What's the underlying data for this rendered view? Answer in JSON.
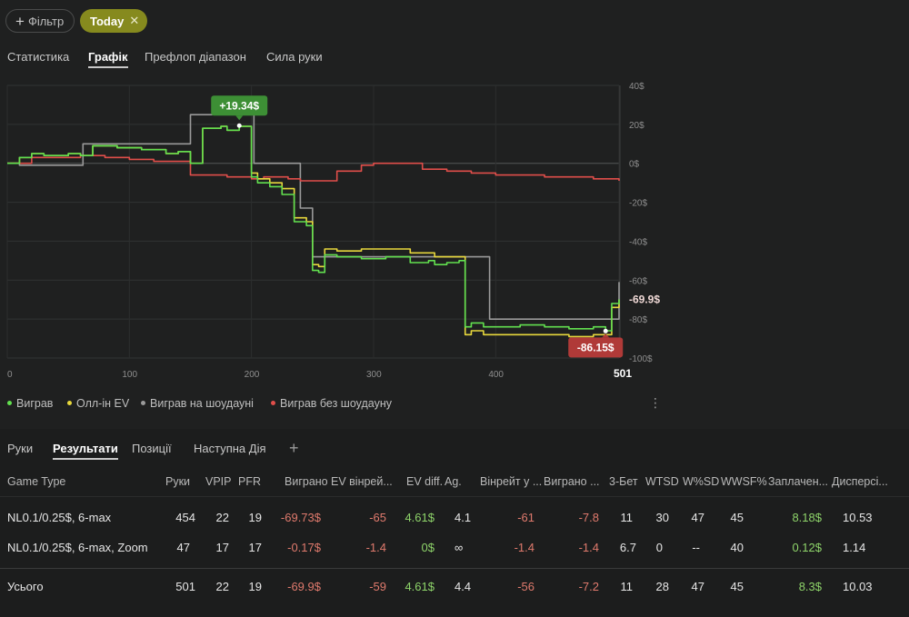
{
  "toolbar": {
    "filter_label": "Фільтр",
    "today_label": "Today"
  },
  "tabs": [
    "Статистика",
    "Графік",
    "Префлоп діапазон",
    "Сила руки"
  ],
  "active_tab": "Графік",
  "colors": {
    "win": "#62e04f",
    "allin_ev": "#e8d83c",
    "showdown": "#9a9a9a",
    "non_showdown": "#e04e4a",
    "accent": "#868a1e"
  },
  "chart_data": {
    "type": "line",
    "x_ticks": [
      "0",
      "100",
      "200",
      "300",
      "400",
      "501"
    ],
    "y_ticks": [
      "40$",
      "20$",
      "0$",
      "-20$",
      "-40$",
      "-60$",
      "-80$",
      "-100$"
    ],
    "xlim": [
      0,
      501
    ],
    "ylim": [
      -100,
      40
    ],
    "grid": true,
    "legend_position": "bottom-left",
    "annotations": {
      "max_label": "+19.34$",
      "min_label": "-86.15$",
      "end_label": "-69.9$",
      "end_x_label": "501"
    },
    "series": [
      {
        "name": "Виграв",
        "x": [
          0,
          10,
          20,
          30,
          50,
          60,
          70,
          90,
          110,
          130,
          140,
          150,
          160,
          170,
          175,
          180,
          190,
          200,
          205,
          215,
          225,
          235,
          245,
          250,
          255,
          260,
          270,
          290,
          310,
          330,
          345,
          350,
          360,
          370,
          375,
          380,
          390,
          400,
          420,
          440,
          460,
          480,
          490,
          495,
          501
        ],
        "y": [
          0,
          3,
          5,
          4,
          5,
          4,
          9,
          8,
          7,
          5,
          6,
          0,
          18,
          18,
          19,
          17,
          19,
          -7,
          -10,
          -12,
          -16,
          -30,
          -32,
          -55,
          -56,
          -47,
          -48,
          -49,
          -48,
          -51,
          -50,
          -52,
          -51,
          -50,
          -84,
          -82,
          -84,
          -84,
          -83,
          -84,
          -85,
          -84,
          -86,
          -72,
          -69.9
        ]
      },
      {
        "name": "Олл-ін EV",
        "x": [
          0,
          10,
          20,
          30,
          50,
          60,
          70,
          90,
          110,
          130,
          140,
          150,
          160,
          170,
          175,
          180,
          190,
          200,
          205,
          215,
          225,
          235,
          245,
          250,
          255,
          260,
          270,
          290,
          310,
          330,
          345,
          350,
          360,
          370,
          375,
          380,
          390,
          400,
          420,
          440,
          460,
          480,
          490,
          495,
          501
        ],
        "y": [
          0,
          3,
          5,
          4,
          5,
          4,
          9,
          8,
          7,
          5,
          6,
          0,
          18,
          18,
          19,
          17,
          19,
          -5,
          -8,
          -10,
          -13,
          -28,
          -30,
          -52,
          -53,
          -44,
          -45,
          -44,
          -44,
          -46,
          -46,
          -48,
          -48,
          -48,
          -88,
          -86,
          -88,
          -88,
          -88,
          -88,
          -89,
          -88,
          -88,
          -74,
          -70
        ]
      },
      {
        "name": "Виграв на шоудауні",
        "x": [
          0,
          10,
          40,
          60,
          62,
          110,
          148,
          150,
          200,
          202,
          230,
          240,
          250,
          300,
          350,
          380,
          395,
          480,
          495,
          501
        ],
        "y": [
          0,
          -1,
          -1,
          -1,
          10,
          10,
          10,
          25,
          25,
          0,
          0,
          -23,
          -48,
          -48,
          -48,
          -48,
          -80,
          -80,
          -80,
          -61
        ]
      },
      {
        "name": "Виграв без шоудауну",
        "x": [
          0,
          20,
          40,
          60,
          80,
          100,
          120,
          140,
          150,
          160,
          180,
          200,
          210,
          230,
          240,
          250,
          270,
          290,
          300,
          320,
          340,
          360,
          380,
          400,
          420,
          440,
          460,
          480,
          501
        ],
        "y": [
          0,
          3,
          3,
          4,
          3,
          2,
          1,
          1,
          -6,
          -6,
          -7,
          -8,
          -7,
          -8,
          -9,
          -9,
          -4,
          -1,
          0,
          0,
          -3,
          -4,
          -5,
          -6,
          -6,
          -7,
          -7,
          -8,
          -9
        ]
      }
    ]
  },
  "bottom_tabs": [
    "Руки",
    "Результати",
    "Позиції",
    "Наступна Дія"
  ],
  "active_bottom_tab": "Результати",
  "table": {
    "headers": [
      "Game Type",
      "Руки",
      "VPIP",
      "PFR",
      "Виграно",
      "EV вінрей...",
      "EV diff.",
      "Ag.",
      "Вінрейт у ...",
      "Виграно ...",
      "3-Бет",
      "WTSD",
      "W%SD",
      "WWSF%",
      "Заплачен...",
      "Дисперсі..."
    ],
    "rows": [
      [
        "NL0.1/0.25$, 6-max",
        "454",
        "22",
        "19",
        "-69.73$",
        "-65",
        "4.61$",
        "4.1",
        "-61",
        "-7.8",
        "11",
        "30",
        "47",
        "45",
        "8.18$",
        "10.53"
      ],
      [
        "NL0.1/0.25$, 6-max, Zoom",
        "47",
        "17",
        "17",
        "-0.17$",
        "-1.4",
        "0$",
        "∞",
        "-1.4",
        "-1.4",
        "6.7",
        "0",
        "--",
        "40",
        "0.12$",
        "1.14"
      ]
    ],
    "total": [
      "Усього",
      "501",
      "22",
      "19",
      "-69.9$",
      "-59",
      "4.61$",
      "4.4",
      "-56",
      "-7.2",
      "11",
      "28",
      "47",
      "45",
      "8.3$",
      "10.03"
    ]
  }
}
